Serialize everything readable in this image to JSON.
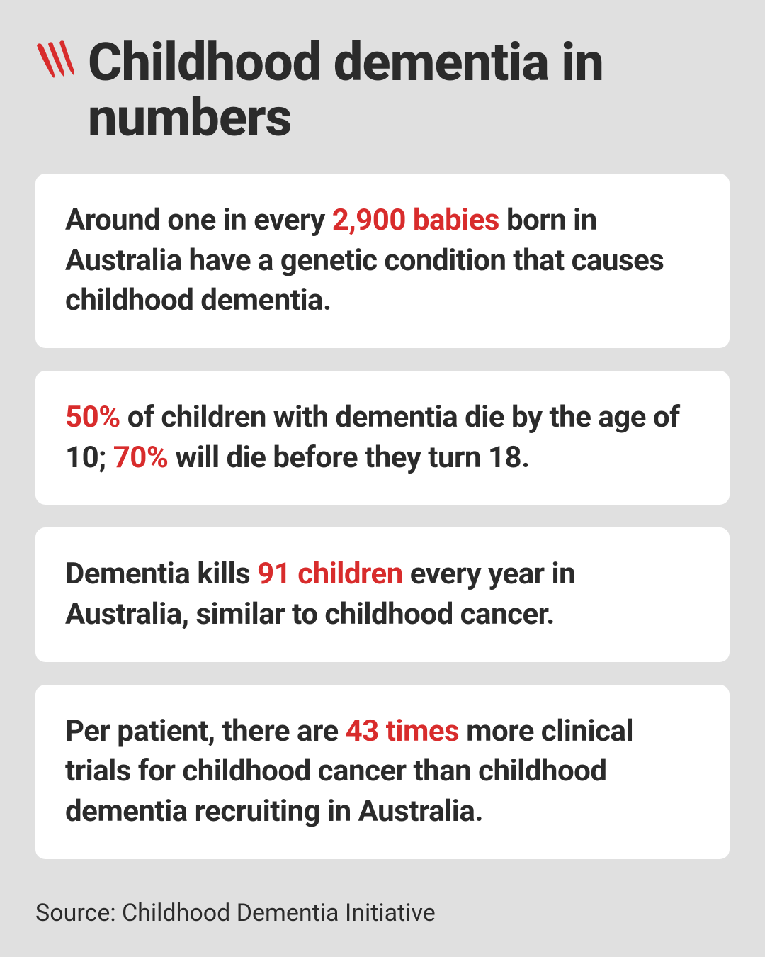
{
  "styling": {
    "background_color": "#e0e0e0",
    "card_background": "#ffffff",
    "card_border_radius": 14,
    "text_color": "#2b2b2b",
    "highlight_color": "#d82c2c",
    "logo_color": "#d82c2c",
    "title_fontsize": 74,
    "card_text_fontsize": 42,
    "source_fontsize": 34
  },
  "title": "Childhood dementia in numbers",
  "cards": [
    {
      "segments": [
        {
          "text": "Around one in every ",
          "highlight": false
        },
        {
          "text": "2,900 babies",
          "highlight": true
        },
        {
          "text": " born in Australia have a genetic condition that causes childhood dementia.",
          "highlight": false
        }
      ]
    },
    {
      "segments": [
        {
          "text": "50%",
          "highlight": true
        },
        {
          "text": " of children with dementia die by the age of 10; ",
          "highlight": false
        },
        {
          "text": "70%",
          "highlight": true
        },
        {
          "text": " will die before they turn 18.",
          "highlight": false
        }
      ]
    },
    {
      "segments": [
        {
          "text": "Dementia kills ",
          "highlight": false
        },
        {
          "text": "91 children",
          "highlight": true
        },
        {
          "text": " every year in Australia, similar to childhood cancer.",
          "highlight": false
        }
      ]
    },
    {
      "segments": [
        {
          "text": "Per patient, there are ",
          "highlight": false
        },
        {
          "text": "43 times",
          "highlight": true
        },
        {
          "text": " more clinical trials for childhood cancer than childhood dementia recruiting in Australia.",
          "highlight": false
        }
      ]
    }
  ],
  "source": "Source: Childhood Dementia Initiative"
}
